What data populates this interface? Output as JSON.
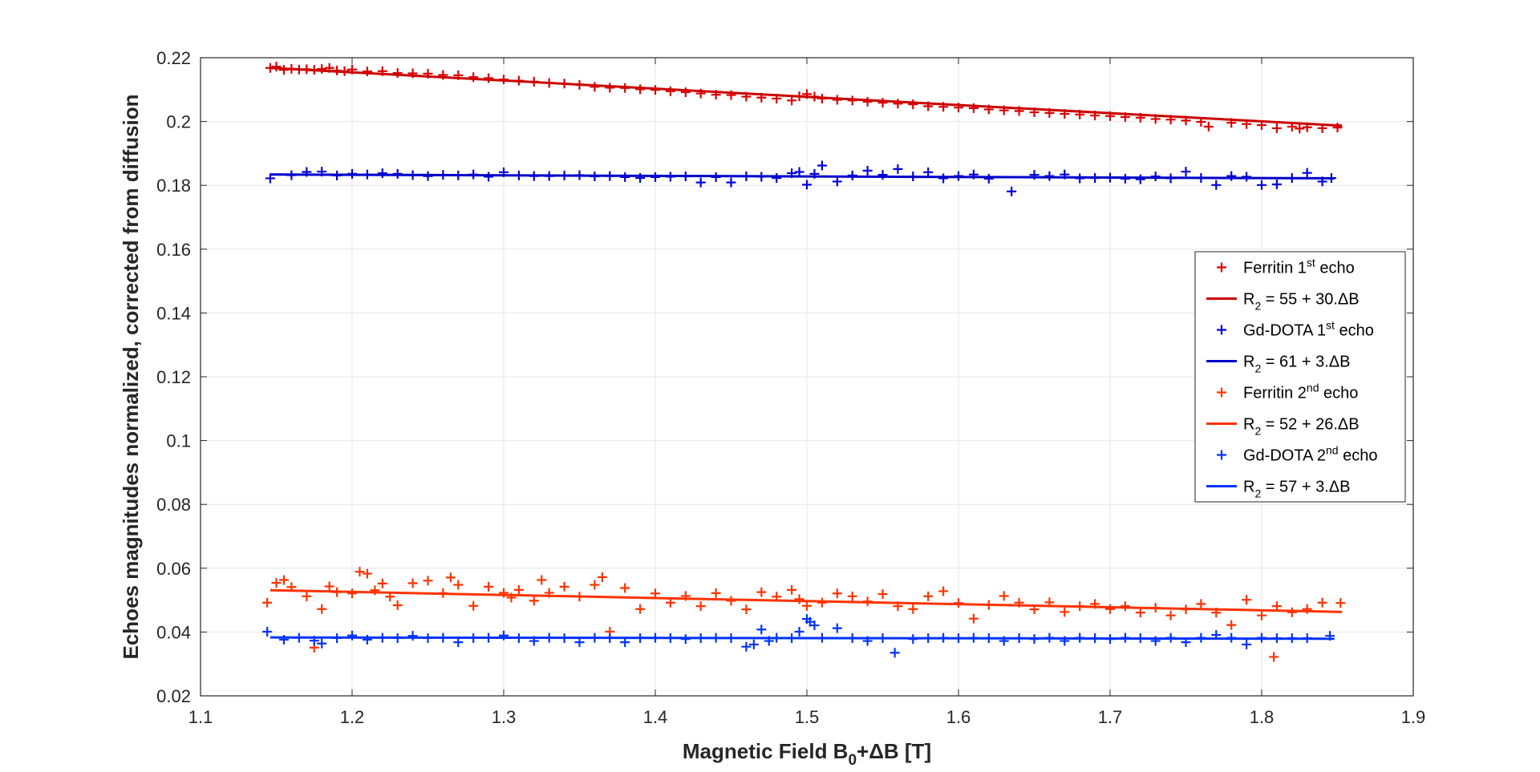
{
  "chart_data": {
    "type": "scatter",
    "xlabel": {
      "main": "Magnetic Field B",
      "sub": "0",
      "tail": "+ΔB [T]"
    },
    "ylabel": "Echoes magnitudes normalized, corrected from diffusion",
    "xlim": [
      1.1,
      1.9
    ],
    "ylim": [
      0.02,
      0.22
    ],
    "xticks": [
      1.1,
      1.2,
      1.3,
      1.4,
      1.5,
      1.6,
      1.7,
      1.8,
      1.9
    ],
    "xtick_labels": [
      "1.1",
      "1.2",
      "1.3",
      "1.4",
      "1.5",
      "1.6",
      "1.7",
      "1.8",
      "1.9"
    ],
    "yticks": [
      0.02,
      0.04,
      0.06,
      0.08,
      0.1,
      0.12,
      0.14,
      0.16,
      0.18,
      0.2,
      0.22
    ],
    "ytick_labels": [
      "0.02",
      "0.04",
      "0.06",
      "0.08",
      "0.1",
      "0.12",
      "0.14",
      "0.16",
      "0.18",
      "0.2",
      "0.22"
    ],
    "grid": true,
    "legend_position": "right",
    "series": [
      {
        "name": "Ferritin 1st echo",
        "name_base": "Ferritin 1",
        "name_sup": "st",
        "name_tail": " echo",
        "color": "#dd0000",
        "marker": "plus",
        "x": [
          1.146,
          1.15,
          1.155,
          1.16,
          1.165,
          1.17,
          1.175,
          1.18,
          1.185,
          1.19,
          1.195,
          1.2,
          1.21,
          1.22,
          1.23,
          1.24,
          1.25,
          1.26,
          1.27,
          1.28,
          1.29,
          1.3,
          1.31,
          1.32,
          1.33,
          1.34,
          1.35,
          1.36,
          1.37,
          1.38,
          1.39,
          1.4,
          1.41,
          1.42,
          1.43,
          1.44,
          1.45,
          1.46,
          1.47,
          1.48,
          1.49,
          1.495,
          1.5,
          1.505,
          1.51,
          1.52,
          1.53,
          1.54,
          1.55,
          1.56,
          1.57,
          1.58,
          1.59,
          1.6,
          1.61,
          1.62,
          1.63,
          1.64,
          1.65,
          1.66,
          1.67,
          1.68,
          1.69,
          1.7,
          1.71,
          1.72,
          1.73,
          1.74,
          1.75,
          1.76,
          1.765,
          1.78,
          1.79,
          1.8,
          1.81,
          1.82,
          1.825,
          1.83,
          1.84,
          1.85
        ],
        "y": [
          0.2168,
          0.2172,
          0.2162,
          0.2165,
          0.2163,
          0.2164,
          0.2162,
          0.2165,
          0.2168,
          0.216,
          0.2158,
          0.2163,
          0.2157,
          0.2158,
          0.2152,
          0.2151,
          0.215,
          0.2146,
          0.2145,
          0.2139,
          0.2136,
          0.2132,
          0.2128,
          0.2125,
          0.2121,
          0.2119,
          0.2115,
          0.2109,
          0.2106,
          0.2105,
          0.2101,
          0.2099,
          0.2095,
          0.2092,
          0.2088,
          0.2084,
          0.2083,
          0.2078,
          0.2075,
          0.2072,
          0.2066,
          0.2079,
          0.2086,
          0.2078,
          0.2072,
          0.2068,
          0.2066,
          0.2062,
          0.2059,
          0.2056,
          0.2054,
          0.2048,
          0.2046,
          0.2044,
          0.2042,
          0.2038,
          0.2035,
          0.2033,
          0.2029,
          0.2027,
          0.2024,
          0.2022,
          0.2019,
          0.2017,
          0.2014,
          0.2012,
          0.2008,
          0.2006,
          0.2003,
          0.1999,
          0.1984,
          0.1996,
          0.1992,
          0.1989,
          0.1979,
          0.1984,
          0.1978,
          0.1982,
          0.1979,
          0.1981
        ]
      },
      {
        "name": "R2 = 55 + 30.ΔB",
        "name_base": "R",
        "name_sub": "2",
        "name_tail": " = 55 + 30.ΔB",
        "color": "#cc0000",
        "line": true,
        "x": [
          1.146,
          1.853
        ],
        "y": [
          0.2168,
          0.1987
        ]
      },
      {
        "name": "Gd-DOTA 1st echo",
        "name_base": "Gd-DOTA 1",
        "name_sup": "st",
        "name_tail": " echo",
        "color": "#0000dd",
        "marker": "plus",
        "x": [
          1.146,
          1.16,
          1.17,
          1.18,
          1.19,
          1.2,
          1.21,
          1.22,
          1.23,
          1.24,
          1.25,
          1.26,
          1.27,
          1.28,
          1.29,
          1.3,
          1.31,
          1.32,
          1.33,
          1.34,
          1.35,
          1.36,
          1.37,
          1.38,
          1.39,
          1.4,
          1.41,
          1.42,
          1.43,
          1.44,
          1.45,
          1.46,
          1.47,
          1.48,
          1.49,
          1.495,
          1.5,
          1.505,
          1.51,
          1.52,
          1.53,
          1.54,
          1.55,
          1.56,
          1.57,
          1.58,
          1.59,
          1.6,
          1.61,
          1.62,
          1.635,
          1.65,
          1.66,
          1.67,
          1.68,
          1.69,
          1.7,
          1.71,
          1.72,
          1.73,
          1.74,
          1.75,
          1.76,
          1.77,
          1.78,
          1.79,
          1.8,
          1.81,
          1.82,
          1.83,
          1.84,
          1.846
        ],
        "y": [
          0.1822,
          0.1832,
          0.1842,
          0.1843,
          0.1831,
          0.1836,
          0.1834,
          0.1838,
          0.1836,
          0.1832,
          0.1829,
          0.1833,
          0.1831,
          0.1834,
          0.1827,
          0.1841,
          0.1831,
          0.1829,
          0.1829,
          0.1831,
          0.1832,
          0.1828,
          0.1829,
          0.1826,
          0.1823,
          0.1826,
          0.1827,
          0.1828,
          0.1809,
          0.1826,
          0.1809,
          0.1828,
          0.1827,
          0.1823,
          0.1838,
          0.1842,
          0.1802,
          0.1836,
          0.1862,
          0.1812,
          0.1831,
          0.1846,
          0.1833,
          0.1851,
          0.1828,
          0.1841,
          0.1822,
          0.1829,
          0.1834,
          0.1821,
          0.1781,
          0.1833,
          0.1829,
          0.1834,
          0.1822,
          0.1823,
          0.1824,
          0.1821,
          0.1819,
          0.1828,
          0.1822,
          0.1843,
          0.1823,
          0.1801,
          0.1829,
          0.1827,
          0.1801,
          0.1803,
          0.1823,
          0.1839,
          0.1812,
          0.1823
        ]
      },
      {
        "name": "R2 = 61 + 3.ΔB",
        "name_base": "R",
        "name_sub": "2",
        "name_tail": " = 61 + 3.ΔB",
        "color": "#0000cc",
        "line": true,
        "x": [
          1.146,
          1.848
        ],
        "y": [
          0.1834,
          0.1822
        ]
      },
      {
        "name": "Ferritin 2nd echo",
        "name_base": "Ferritin 2",
        "name_sup": "nd",
        "name_tail": " echo",
        "color": "#ff3300",
        "marker": "plus",
        "x": [
          1.144,
          1.15,
          1.155,
          1.16,
          1.17,
          1.175,
          1.18,
          1.185,
          1.19,
          1.2,
          1.205,
          1.21,
          1.215,
          1.22,
          1.225,
          1.23,
          1.24,
          1.25,
          1.26,
          1.265,
          1.27,
          1.28,
          1.29,
          1.3,
          1.305,
          1.31,
          1.32,
          1.325,
          1.33,
          1.34,
          1.35,
          1.36,
          1.365,
          1.37,
          1.38,
          1.39,
          1.4,
          1.41,
          1.42,
          1.43,
          1.44,
          1.45,
          1.46,
          1.47,
          1.48,
          1.49,
          1.495,
          1.5,
          1.51,
          1.52,
          1.53,
          1.54,
          1.55,
          1.56,
          1.57,
          1.58,
          1.59,
          1.6,
          1.61,
          1.62,
          1.63,
          1.64,
          1.65,
          1.66,
          1.67,
          1.68,
          1.69,
          1.7,
          1.71,
          1.72,
          1.73,
          1.74,
          1.75,
          1.76,
          1.77,
          1.78,
          1.79,
          1.8,
          1.808,
          1.81,
          1.82,
          1.83,
          1.84,
          1.852
        ],
        "y": [
          0.0492,
          0.0554,
          0.0563,
          0.0541,
          0.0512,
          0.0351,
          0.0472,
          0.0543,
          0.0525,
          0.0521,
          0.0589,
          0.0583,
          0.0531,
          0.0552,
          0.0511,
          0.0484,
          0.0553,
          0.0561,
          0.0522,
          0.0571,
          0.0548,
          0.0482,
          0.0542,
          0.0523,
          0.0508,
          0.0532,
          0.0498,
          0.0563,
          0.0523,
          0.0542,
          0.0511,
          0.0548,
          0.0572,
          0.0401,
          0.0538,
          0.0472,
          0.0521,
          0.0492,
          0.0513,
          0.0481,
          0.0522,
          0.0498,
          0.0471,
          0.0525,
          0.0511,
          0.0532,
          0.0503,
          0.0482,
          0.0492,
          0.0521,
          0.0512,
          0.0496,
          0.0519,
          0.0481,
          0.0472,
          0.0512,
          0.0528,
          0.0491,
          0.0442,
          0.0485,
          0.0513,
          0.0492,
          0.0471,
          0.0493,
          0.0463,
          0.0481,
          0.0488,
          0.0472,
          0.0481,
          0.0461,
          0.0476,
          0.0452,
          0.0471,
          0.0488,
          0.0461,
          0.0422,
          0.0501,
          0.0452,
          0.0322,
          0.0481,
          0.0462,
          0.0472,
          0.0492,
          0.0491
        ]
      },
      {
        "name": "R2 = 52 + 26.ΔB",
        "name_base": "R",
        "name_sub": "2",
        "name_tail": " = 52 + 26.ΔB",
        "color": "#ff3300",
        "line": true,
        "x": [
          1.146,
          1.853
        ],
        "y": [
          0.0531,
          0.0463
        ]
      },
      {
        "name": "Gd-DOTA 2nd echo",
        "name_base": "Gd-DOTA 2",
        "name_sup": "nd",
        "name_tail": " echo",
        "color": "#0033ff",
        "marker": "plus",
        "x": [
          1.144,
          1.155,
          1.165,
          1.175,
          1.18,
          1.19,
          1.2,
          1.21,
          1.22,
          1.23,
          1.24,
          1.25,
          1.26,
          1.27,
          1.28,
          1.29,
          1.3,
          1.31,
          1.32,
          1.33,
          1.34,
          1.35,
          1.36,
          1.37,
          1.38,
          1.39,
          1.4,
          1.41,
          1.42,
          1.43,
          1.44,
          1.45,
          1.46,
          1.465,
          1.47,
          1.475,
          1.48,
          1.49,
          1.495,
          1.5,
          1.502,
          1.505,
          1.51,
          1.52,
          1.53,
          1.54,
          1.55,
          1.558,
          1.57,
          1.58,
          1.59,
          1.6,
          1.61,
          1.62,
          1.63,
          1.64,
          1.65,
          1.66,
          1.67,
          1.68,
          1.69,
          1.7,
          1.71,
          1.72,
          1.73,
          1.74,
          1.75,
          1.76,
          1.77,
          1.78,
          1.79,
          1.8,
          1.81,
          1.82,
          1.83,
          1.845
        ],
        "y": [
          0.0401,
          0.0376,
          0.0382,
          0.0373,
          0.0364,
          0.0381,
          0.0389,
          0.0376,
          0.0382,
          0.0381,
          0.0388,
          0.0381,
          0.0382,
          0.0368,
          0.0381,
          0.0382,
          0.0389,
          0.0381,
          0.0372,
          0.0382,
          0.0381,
          0.0368,
          0.0382,
          0.0381,
          0.0368,
          0.0381,
          0.0382,
          0.0381,
          0.0378,
          0.0381,
          0.0382,
          0.0381,
          0.0354,
          0.0361,
          0.0408,
          0.0372,
          0.0382,
          0.0381,
          0.0401,
          0.0441,
          0.0432,
          0.0421,
          0.0382,
          0.0412,
          0.0381,
          0.0372,
          0.0381,
          0.0335,
          0.0378,
          0.0381,
          0.0382,
          0.0381,
          0.0382,
          0.0381,
          0.0372,
          0.0381,
          0.0378,
          0.0382,
          0.0372,
          0.0382,
          0.0381,
          0.0378,
          0.0382,
          0.0381,
          0.0372,
          0.0382,
          0.0368,
          0.0382,
          0.0391,
          0.0382,
          0.0361,
          0.0382,
          0.0381,
          0.0381,
          0.0381,
          0.0388
        ]
      },
      {
        "name": "R2 = 57 + 3.ΔB",
        "name_base": "R",
        "name_sub": "2",
        "name_tail": " = 57 + 3.ΔB",
        "color": "#0033ff",
        "line": true,
        "x": [
          1.146,
          1.848
        ],
        "y": [
          0.0383,
          0.0379
        ]
      }
    ]
  }
}
